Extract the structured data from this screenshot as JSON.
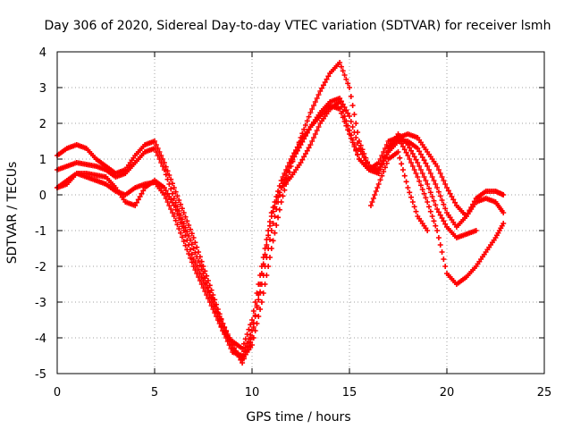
{
  "chart_data": {
    "type": "scatter",
    "title": "Day 306 of 2020, Sidereal Day-to-day VTEC variation (SDTVAR) for receiver lsmh",
    "xlabel": "GPS time / hours",
    "ylabel": "SDTVAR / TECUs",
    "xlim": [
      0,
      25
    ],
    "ylim": [
      -5,
      4
    ],
    "xticks": [
      0,
      5,
      10,
      15,
      20,
      25
    ],
    "yticks": [
      -5,
      -4,
      -3,
      -2,
      -1,
      0,
      1,
      2,
      3,
      4
    ],
    "grid": true,
    "marker": "+",
    "color": "#ff0000",
    "series": [
      {
        "x": [
          0,
          0.5,
          1,
          1.5,
          2,
          2.5,
          3,
          3.5,
          4,
          4.5,
          5,
          5.5,
          6,
          6.5,
          7,
          7.5,
          8,
          8.5,
          9,
          9.5,
          10,
          10.5,
          11,
          11.5,
          12,
          12.5,
          13,
          13.5,
          14,
          14.5,
          15,
          15.5,
          16,
          16.5,
          17,
          17.5,
          18,
          18.5,
          19,
          19.5,
          20,
          20.5,
          21,
          21.5,
          22,
          22.5,
          22.9
        ],
        "y": [
          1.1,
          1.3,
          1.4,
          1.3,
          1.0,
          0.8,
          0.6,
          0.7,
          1.1,
          1.4,
          1.5,
          0.9,
          0.2,
          -0.5,
          -1.2,
          -2.0,
          -2.8,
          -3.6,
          -4.3,
          -4.6,
          -4.2,
          -3.0,
          -1.5,
          -0.2,
          0.8,
          1.6,
          2.3,
          2.9,
          3.4,
          3.7,
          3.0,
          1.5,
          0.8,
          0.6,
          1.3,
          1.6,
          1.7,
          1.6,
          1.2,
          0.8,
          0.2,
          -0.3,
          -0.6,
          -0.1,
          0.1,
          0.1,
          0.0
        ]
      },
      {
        "x": [
          0,
          0.5,
          1,
          1.5,
          2,
          2.5,
          3,
          3.5,
          4,
          4.5,
          5,
          5.5,
          6,
          6.5,
          7,
          7.5,
          8,
          8.5,
          9,
          9.5,
          10,
          10.5,
          11,
          11.5,
          12,
          12.5,
          13,
          13.5,
          14,
          14.5,
          15,
          15.5,
          16,
          16.5,
          17,
          17.5,
          18,
          18.5,
          19,
          19.5,
          20,
          20.5,
          21,
          21.5,
          22,
          22.5,
          22.9
        ],
        "y": [
          0.7,
          0.8,
          0.9,
          0.85,
          0.8,
          0.7,
          0.5,
          0.6,
          0.9,
          1.2,
          1.3,
          0.7,
          -0.1,
          -0.8,
          -1.5,
          -2.2,
          -3.0,
          -3.8,
          -4.4,
          -4.5,
          -3.8,
          -2.5,
          -1.0,
          0.2,
          0.9,
          1.4,
          1.9,
          2.3,
          2.6,
          2.7,
          2.2,
          1.3,
          0.8,
          0.7,
          1.2,
          1.5,
          1.5,
          1.3,
          0.8,
          0.2,
          -0.5,
          -0.9,
          -0.6,
          -0.2,
          -0.1,
          -0.2,
          -0.5
        ]
      },
      {
        "x": [
          0,
          0.5,
          1,
          1.5,
          2,
          2.5,
          3,
          3.5,
          4,
          4.5,
          5,
          5.5,
          6,
          6.5,
          7,
          7.5,
          8,
          8.5,
          9,
          9.5,
          10,
          10.5,
          11,
          11.5,
          12,
          12.5,
          13,
          13.5,
          14,
          14.5,
          15,
          15.5,
          16,
          16.5,
          17,
          17.5,
          18,
          18.5,
          19,
          19.5,
          20,
          20.5,
          21,
          21.5
        ],
        "y": [
          0.2,
          0.3,
          0.6,
          0.6,
          0.55,
          0.5,
          0.2,
          -0.2,
          -0.3,
          0.2,
          0.4,
          0.2,
          -0.3,
          -1.0,
          -1.8,
          -2.4,
          -3.0,
          -3.6,
          -4.2,
          -4.7,
          -4.0,
          -2.2,
          -0.6,
          0.2,
          0.5,
          0.9,
          1.4,
          2.0,
          2.4,
          2.6,
          1.8,
          1.0,
          0.7,
          0.6,
          1.3,
          1.7,
          1.4,
          0.9,
          0.3,
          -0.4,
          -0.9,
          -1.2,
          -1.1,
          -1.0
        ]
      },
      {
        "x": [
          0,
          0.5,
          1,
          1.5,
          2,
          2.5,
          3,
          3.5,
          4,
          4.5,
          5,
          5.5,
          6,
          6.5,
          7,
          7.5,
          8,
          8.5,
          9,
          9.5,
          10,
          10.5,
          11,
          11.5,
          12,
          12.5,
          13,
          13.5,
          14,
          14.5,
          15,
          15.5,
          16,
          16.5,
          17,
          17.5,
          18,
          18.5,
          19,
          19.5,
          20,
          20.5,
          21,
          21.5,
          22,
          22.5,
          22.9
        ],
        "y": [
          0.2,
          0.4,
          0.6,
          0.5,
          0.4,
          0.3,
          0.1,
          0.0,
          0.2,
          0.3,
          0.35,
          0.0,
          -0.6,
          -1.3,
          -2.0,
          -2.6,
          -3.2,
          -3.8,
          -4.1,
          -4.3,
          -3.5,
          -2.0,
          -0.5,
          0.4,
          1.0,
          1.5,
          1.9,
          2.2,
          2.5,
          2.4,
          1.7,
          1.0,
          0.7,
          0.9,
          1.5,
          1.6,
          1.1,
          0.5,
          -0.2,
          -1.0,
          -2.2,
          -2.5,
          -2.3,
          -2.0,
          -1.6,
          -1.2,
          -0.8
        ]
      },
      {
        "x": [
          16.1,
          16.5,
          17,
          17.5,
          18,
          18.5,
          19
        ],
        "y": [
          -0.3,
          0.3,
          1.0,
          1.2,
          0.2,
          -0.6,
          -1.0
        ]
      }
    ]
  }
}
